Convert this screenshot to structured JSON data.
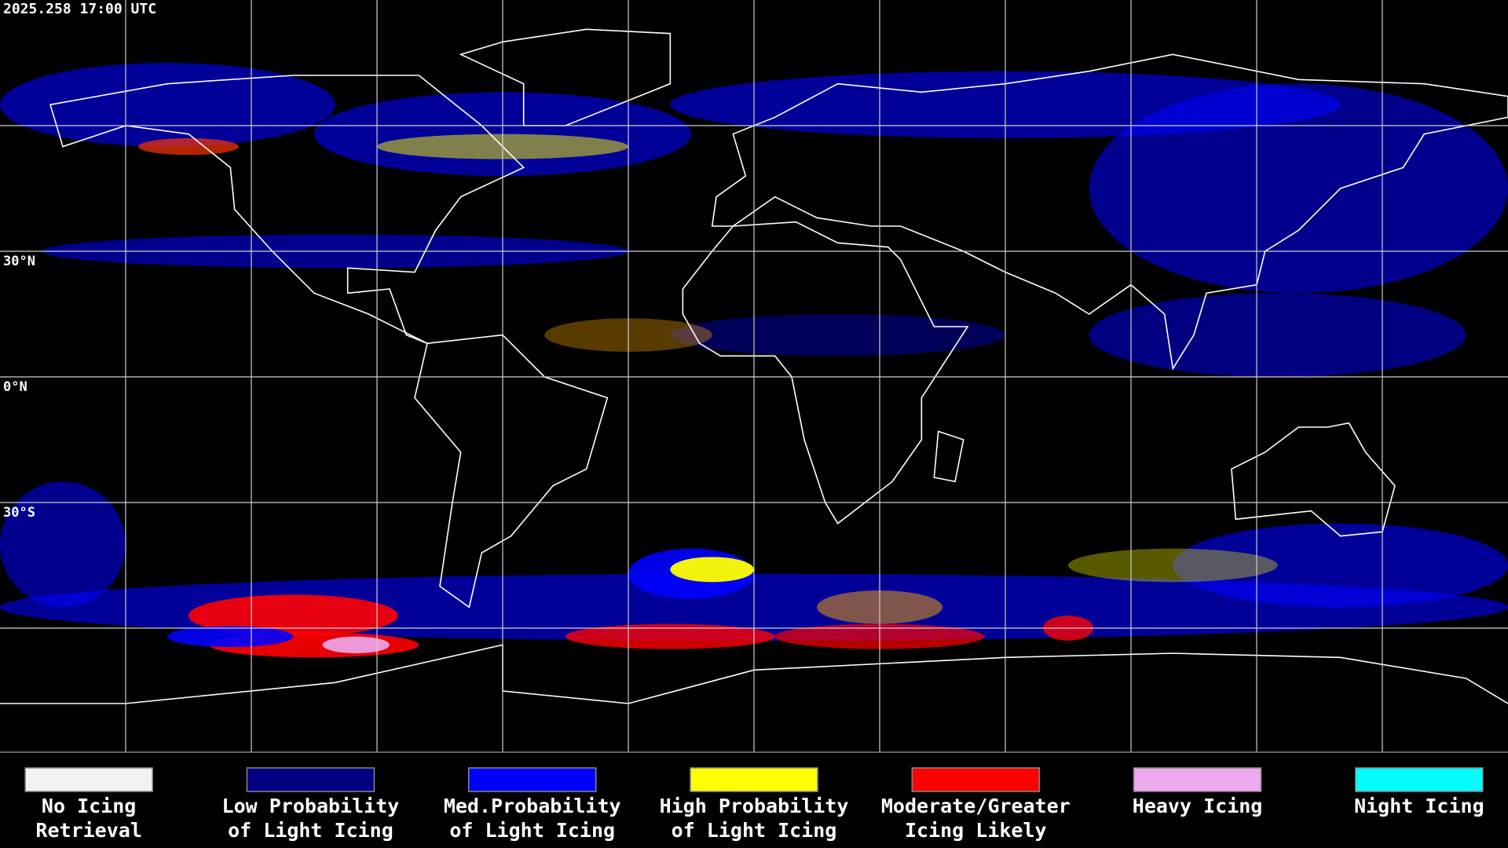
{
  "timestamp": "2025.258 17:00 UTC",
  "lat_labels": [
    "30°N",
    "0°N",
    "30°S"
  ],
  "legend": {
    "items": [
      {
        "lines": [
          "No Icing",
          "Retrieval"
        ],
        "color": "#f2f2f2"
      },
      {
        "lines": [
          "Low Probability",
          "of Light Icing"
        ],
        "color": "#000080"
      },
      {
        "lines": [
          "Med.Probability",
          "of Light Icing"
        ],
        "color": "#0000ff"
      },
      {
        "lines": [
          "High Probability",
          "of Light Icing"
        ],
        "color": "#ffff00"
      },
      {
        "lines": [
          "Moderate/Greater",
          "Icing Likely"
        ],
        "color": "#ff0000"
      },
      {
        "lines": [
          "Heavy Icing"
        ],
        "color": "#eeaaee"
      },
      {
        "lines": [
          "Night Icing"
        ],
        "color": "#00ffff"
      }
    ]
  }
}
